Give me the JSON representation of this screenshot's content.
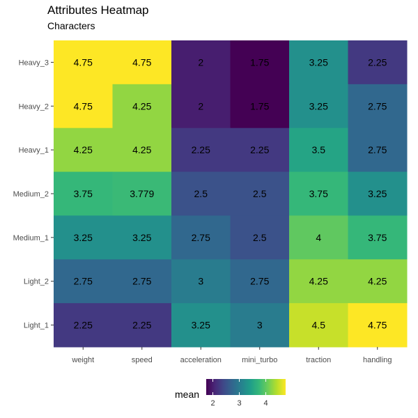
{
  "chart_data": {
    "type": "heatmap",
    "title": "Attributes Heatmap",
    "subtitle": "Characters",
    "columns": [
      "weight",
      "speed",
      "acceleration",
      "mini_turbo",
      "traction",
      "handling"
    ],
    "rows": [
      "Heavy_3",
      "Heavy_2",
      "Heavy_1",
      "Medium_2",
      "Medium_1",
      "Light_2",
      "Light_1"
    ],
    "values": [
      [
        4.75,
        4.75,
        2,
        1.75,
        3.25,
        2.25
      ],
      [
        4.75,
        4.25,
        2,
        1.75,
        3.25,
        2.75
      ],
      [
        4.25,
        4.25,
        2.25,
        2.25,
        3.5,
        2.75
      ],
      [
        3.75,
        3.779,
        2.5,
        2.5,
        3.75,
        3.25
      ],
      [
        3.25,
        3.25,
        2.75,
        2.5,
        4,
        3.75
      ],
      [
        2.75,
        2.75,
        3,
        2.75,
        4.25,
        4.25
      ],
      [
        2.25,
        2.25,
        3.25,
        3,
        4.5,
        4.75
      ]
    ],
    "labels": [
      [
        "4.75",
        "4.75",
        "2",
        "1.75",
        "3.25",
        "2.25"
      ],
      [
        "4.75",
        "4.25",
        "2",
        "1.75",
        "3.25",
        "2.75"
      ],
      [
        "4.25",
        "4.25",
        "2.25",
        "2.25",
        "3.5",
        "2.75"
      ],
      [
        "3.75",
        "3.779",
        "2.5",
        "2.5",
        "3.75",
        "3.25"
      ],
      [
        "3.25",
        "3.25",
        "2.75",
        "2.5",
        "4",
        "3.75"
      ],
      [
        "2.75",
        "2.75",
        "3",
        "2.75",
        "4.25",
        "4.25"
      ],
      [
        "2.25",
        "2.25",
        "3.25",
        "3",
        "4.5",
        "4.75"
      ]
    ],
    "color_scale": {
      "name": "viridis",
      "min": 1.75,
      "max": 4.75,
      "colors": [
        "#440154",
        "#482878",
        "#3e4a89",
        "#31688e",
        "#26828e",
        "#1f9e89",
        "#35b779",
        "#6ece58",
        "#b5de2b",
        "#fde725"
      ]
    },
    "legend": {
      "title": "mean",
      "ticks": [
        2,
        3,
        4
      ],
      "tick_labels": [
        "2",
        "3",
        "4"
      ],
      "position": "bottom"
    },
    "grid": false
  }
}
